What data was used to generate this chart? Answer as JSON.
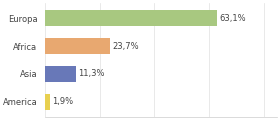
{
  "categories": [
    "Europa",
    "Africa",
    "Asia",
    "America"
  ],
  "values": [
    63.1,
    23.7,
    11.3,
    1.9
  ],
  "labels": [
    "63,1%",
    "23,7%",
    "11,3%",
    "1,9%"
  ],
  "bar_colors": [
    "#a8c880",
    "#e8a870",
    "#6878b8",
    "#e8d050"
  ],
  "background_color": "#ffffff",
  "xlim": [
    0,
    85
  ],
  "label_fontsize": 6.0,
  "tick_fontsize": 6.0,
  "bar_height": 0.55,
  "figsize": [
    2.8,
    1.2
  ],
  "dpi": 100
}
